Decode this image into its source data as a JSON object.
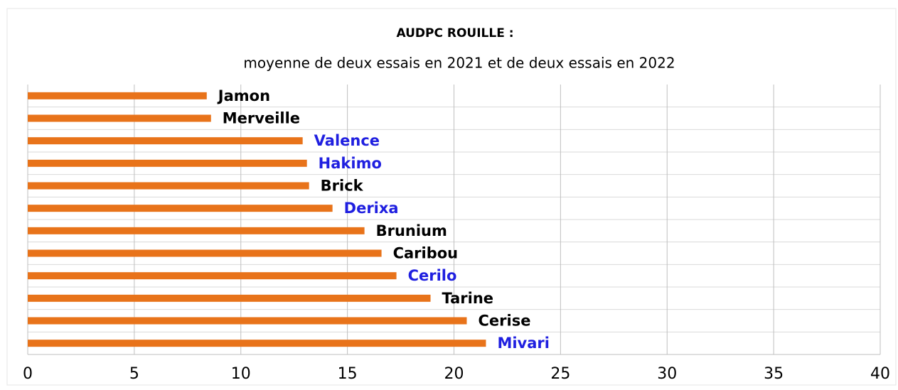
{
  "chart_data": {
    "type": "barh",
    "title": "AUDPC ROUILLE  :",
    "subtitle": "moyenne de deux essais en 2021 et de deux essais en 2022",
    "categories": [
      "Jamon",
      "Merveille",
      "Valence",
      "Hakimo",
      "Brick",
      "Derixa",
      "Brunium",
      "Caribou",
      "Cerilo",
      "Tarine",
      "Cerise",
      "Mivari"
    ],
    "values": [
      8.4,
      8.6,
      12.9,
      13.1,
      13.2,
      14.3,
      15.8,
      16.6,
      17.3,
      18.9,
      20.6,
      21.5
    ],
    "label_colors": [
      "#000000",
      "#000000",
      "#1f1fe0",
      "#1f1fe0",
      "#000000",
      "#1f1fe0",
      "#000000",
      "#000000",
      "#1f1fe0",
      "#000000",
      "#000000",
      "#1f1fe0"
    ],
    "color": "#e8731a",
    "xlim": [
      0,
      40
    ],
    "xticks": [
      0,
      5,
      10,
      15,
      20,
      25,
      30,
      35,
      40
    ],
    "grid": true
  }
}
